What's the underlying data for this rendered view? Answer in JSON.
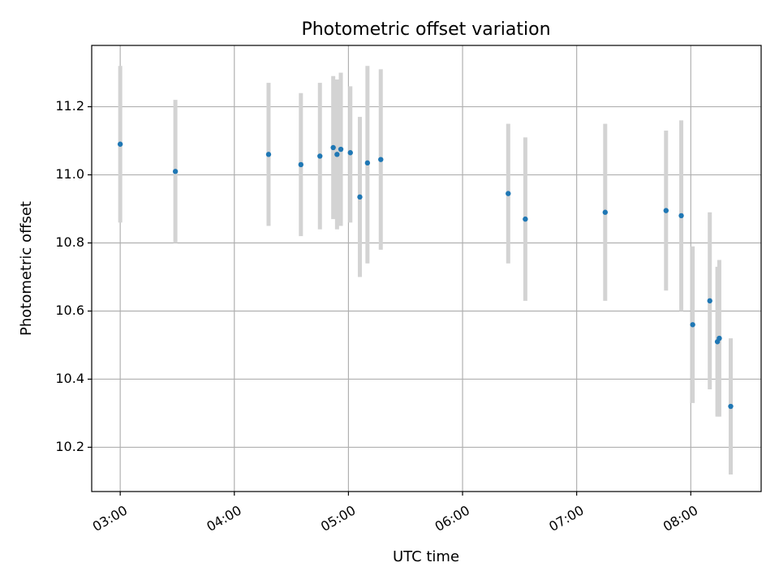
{
  "chart_data": {
    "type": "scatter",
    "title": "Photometric offset variation",
    "xlabel": "UTC time",
    "ylabel": "Photometric offset",
    "x_unit": "time",
    "xlim": [
      "02:45",
      "08:37"
    ],
    "ylim": [
      10.07,
      11.38
    ],
    "x_ticks": [
      "03:00",
      "04:00",
      "05:00",
      "06:00",
      "07:00",
      "08:00"
    ],
    "y_ticks": [
      "10.2",
      "10.4",
      "10.6",
      "10.8",
      "11.0",
      "11.2"
    ],
    "grid": true,
    "legend": "none",
    "marker_color": "#1f77b4",
    "errorbar_color": "#d3d3d3",
    "points": [
      {
        "x": "03:00",
        "y": 11.09,
        "y_low": 10.86,
        "y_high": 11.32
      },
      {
        "x": "03:29",
        "y": 11.01,
        "y_low": 10.8,
        "y_high": 11.22
      },
      {
        "x": "04:18",
        "y": 11.06,
        "y_low": 10.85,
        "y_high": 11.27
      },
      {
        "x": "04:35",
        "y": 11.03,
        "y_low": 10.82,
        "y_high": 11.24
      },
      {
        "x": "04:45",
        "y": 11.055,
        "y_low": 10.84,
        "y_high": 11.27
      },
      {
        "x": "04:52",
        "y": 11.08,
        "y_low": 10.87,
        "y_high": 11.29
      },
      {
        "x": "04:54",
        "y": 11.06,
        "y_low": 10.84,
        "y_high": 11.28
      },
      {
        "x": "04:56",
        "y": 11.075,
        "y_low": 10.85,
        "y_high": 11.3
      },
      {
        "x": "05:01",
        "y": 11.065,
        "y_low": 10.86,
        "y_high": 11.26
      },
      {
        "x": "05:06",
        "y": 10.935,
        "y_low": 10.7,
        "y_high": 11.17
      },
      {
        "x": "05:10",
        "y": 11.035,
        "y_low": 10.74,
        "y_high": 11.32
      },
      {
        "x": "05:17",
        "y": 11.045,
        "y_low": 10.78,
        "y_high": 11.31
      },
      {
        "x": "06:24",
        "y": 10.945,
        "y_low": 10.74,
        "y_high": 11.15
      },
      {
        "x": "06:33",
        "y": 10.87,
        "y_low": 10.63,
        "y_high": 11.11
      },
      {
        "x": "07:15",
        "y": 10.89,
        "y_low": 10.63,
        "y_high": 11.15
      },
      {
        "x": "07:47",
        "y": 10.895,
        "y_low": 10.66,
        "y_high": 11.13
      },
      {
        "x": "07:55",
        "y": 10.88,
        "y_low": 10.6,
        "y_high": 11.16
      },
      {
        "x": "08:01",
        "y": 10.56,
        "y_low": 10.33,
        "y_high": 10.79
      },
      {
        "x": "08:10",
        "y": 10.63,
        "y_low": 10.37,
        "y_high": 10.89
      },
      {
        "x": "08:14",
        "y": 10.51,
        "y_low": 10.29,
        "y_high": 10.73
      },
      {
        "x": "08:15",
        "y": 10.52,
        "y_low": 10.29,
        "y_high": 10.75
      },
      {
        "x": "08:21",
        "y": 10.32,
        "y_low": 10.12,
        "y_high": 10.52
      }
    ]
  }
}
